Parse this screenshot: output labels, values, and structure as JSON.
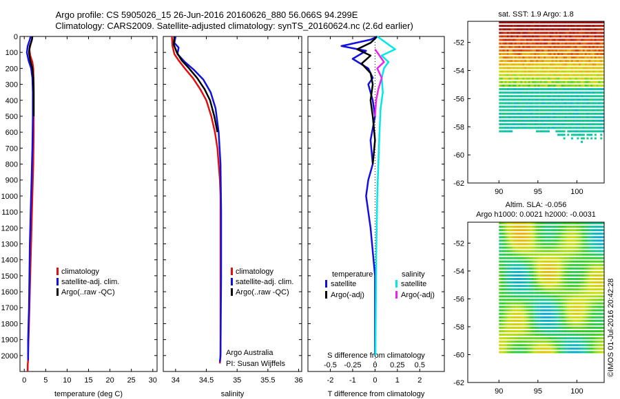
{
  "header": {
    "title_line1": "Argo profile: CS 5905026_15 26-Jun-2016 20160626_880 56.066S 94.299E",
    "title_line2": "Climatology: CARS2009. Satellite-adjusted climatology: synTS_20160624.nc (2.6d earlier)"
  },
  "colors": {
    "climatology": "#e01010",
    "satellite": "#1010e0",
    "argo": "#000000",
    "sal_satellite": "#00e8e8",
    "sal_argo": "#f020f0"
  },
  "footer": {
    "institution": "Argo Australia",
    "pi": "PI: Susan Wijffels",
    "timestamp": "©IMOS 01-Jul-2016 20:42:28"
  },
  "chart_data": [
    {
      "type": "line",
      "xlabel": "temperature (deg C)",
      "ylim": [
        0,
        2100
      ],
      "xlim": [
        -1,
        31
      ],
      "xticks": [
        0,
        5,
        10,
        15,
        20,
        25,
        30
      ],
      "yticks": [
        0,
        100,
        200,
        300,
        400,
        500,
        600,
        700,
        800,
        900,
        1000,
        1100,
        1200,
        1300,
        1400,
        1500,
        1600,
        1700,
        1800,
        1900,
        2000
      ],
      "legend": [
        "climatology",
        "satellite-adj. clim.",
        "Argo(..raw -QC)"
      ],
      "series": [
        {
          "name": "climatology",
          "color": "#e01010",
          "x": [
            1.9,
            1.8,
            1.5,
            1.2,
            1.4,
            1.9,
            2.1,
            2.2,
            2.2,
            2.2,
            2.1,
            1.9,
            1.7,
            1.5,
            1.3,
            1.2,
            1.1,
            1.0,
            0.9,
            0.9,
            0.8,
            0.8
          ],
          "y": [
            0,
            20,
            50,
            80,
            120,
            160,
            200,
            300,
            400,
            600,
            800,
            1000,
            1200,
            1400,
            1600,
            1700,
            1800,
            1900,
            2000,
            2030,
            2060,
            2100
          ]
        },
        {
          "name": "satellite-adj. clim.",
          "color": "#1010e0",
          "x": [
            1.5,
            1.3,
            0.8,
            0.6,
            1.0,
            1.6,
            1.9,
            2.0,
            2.0,
            1.9,
            1.7,
            1.5,
            1.3,
            1.2,
            1.1,
            1.0,
            0.9,
            0.9,
            0.9
          ],
          "y": [
            0,
            20,
            60,
            100,
            150,
            200,
            260,
            350,
            500,
            700,
            900,
            1100,
            1300,
            1500,
            1700,
            1800,
            1900,
            2000,
            2030
          ]
        },
        {
          "name": "Argo(..raw -QC)",
          "color": "#000000",
          "x": [
            1.9,
            1.8,
            1.3,
            1.1,
            1.4,
            1.9,
            2.1,
            2.2,
            2.2
          ],
          "y": [
            0,
            20,
            60,
            100,
            150,
            200,
            260,
            350,
            500
          ]
        }
      ]
    },
    {
      "type": "line",
      "xlabel": "salinity",
      "ylim": [
        0,
        2100
      ],
      "xlim": [
        33.8,
        36.05
      ],
      "xticks": [
        34,
        34.5,
        35,
        35.5,
        36
      ],
      "legend": [
        "climatology",
        "satellite-adj. clim.",
        "Argo(..raw -QC)"
      ],
      "series": [
        {
          "name": "climatology",
          "color": "#e01010",
          "x": [
            33.94,
            33.95,
            33.98,
            34.05,
            34.15,
            34.28,
            34.4,
            34.5,
            34.58,
            34.64,
            34.68,
            34.7,
            34.72,
            34.73,
            34.73,
            34.73,
            34.72
          ],
          "y": [
            0,
            60,
            110,
            150,
            200,
            260,
            330,
            400,
            500,
            600,
            700,
            800,
            900,
            1000,
            1500,
            2000,
            2050
          ]
        },
        {
          "name": "satellite-adj. clim.",
          "color": "#1010e0",
          "x": [
            34.0,
            33.98,
            34.05,
            34.03,
            34.15,
            34.3,
            34.45,
            34.57,
            34.65,
            34.7,
            34.73,
            34.74,
            34.74,
            34.73,
            34.72
          ],
          "y": [
            0,
            40,
            70,
            110,
            160,
            210,
            270,
            350,
            450,
            600,
            800,
            1100,
            1500,
            2000,
            2040
          ]
        },
        {
          "name": "Argo(..raw -QC)",
          "color": "#000000",
          "x": [
            33.98,
            33.97,
            34.02,
            34.1,
            34.22,
            34.35,
            34.47,
            34.56,
            34.63,
            34.68
          ],
          "y": [
            0,
            50,
            100,
            150,
            200,
            260,
            330,
            400,
            500,
            600
          ]
        }
      ]
    },
    {
      "type": "line",
      "xlabel": "T difference from climatology",
      "xlabel_top": "S difference from climatology",
      "ylim": [
        0,
        2100
      ],
      "xlim": [
        -3,
        3.1
      ],
      "xticks": [
        -2,
        -1,
        0,
        1,
        2
      ],
      "xticks_top": [
        "-0.5",
        "-0.25",
        "0",
        "0.25",
        "0.5"
      ],
      "legend_headers": [
        "temperature",
        "salinity"
      ],
      "legend": [
        "satellite",
        "Argo(-adj)",
        "satellite",
        "Argo(-adj)"
      ],
      "series": [
        {
          "name": "satellite",
          "color": "#1010e0",
          "x": [
            0.1,
            -0.2,
            -1.5,
            -0.4,
            -1.0,
            -0.3,
            -0.1,
            -0.3,
            -0.1,
            0.0,
            -0.2,
            -0.1,
            -0.3,
            -0.4,
            -0.2,
            0.0,
            0.0
          ],
          "y": [
            0,
            20,
            60,
            90,
            140,
            200,
            260,
            300,
            400,
            500,
            650,
            800,
            900,
            1000,
            1200,
            1500,
            2000
          ]
        },
        {
          "name": "Argo(-adj)",
          "color": "#000000",
          "x": [
            0.1,
            -0.2,
            -0.8,
            -0.2,
            -0.6,
            -0.2,
            -0.1,
            -0.2,
            -0.1,
            0.0,
            -0.1
          ],
          "y": [
            0,
            40,
            80,
            120,
            170,
            230,
            300,
            400,
            500,
            650,
            800
          ]
        },
        {
          "name": "satellite",
          "color": "#00e8e8",
          "x": [
            0.1,
            0.5,
            0.9,
            0.3,
            0.6,
            0.4,
            0.3,
            0.35,
            0.25,
            0.2,
            0.15,
            0.1,
            0.05,
            0.02
          ],
          "y": [
            0,
            40,
            80,
            120,
            160,
            200,
            260,
            350,
            450,
            600,
            800,
            1000,
            1400,
            2000
          ]
        },
        {
          "name": "Argo(-adj)",
          "color": "#f020f0",
          "x": [
            0.0,
            0.2,
            0.4,
            0.1,
            0.3,
            0.15,
            0.05,
            0.0
          ],
          "y": [
            80,
            120,
            160,
            200,
            260,
            330,
            400,
            500
          ]
        }
      ]
    },
    {
      "type": "heatmap",
      "title": "sat. SST: 1.9 Argo: 1.8",
      "xlim": [
        86,
        103.5
      ],
      "ylim": [
        -62,
        -50.5
      ],
      "xticks": [
        90,
        95,
        100
      ],
      "yticks": [
        -52,
        -54,
        -56,
        -58,
        -60,
        -62
      ]
    },
    {
      "type": "heatmap",
      "title": "Altim. SLA: -0.056",
      "subtitle": "Argo h1000: 0.0021 h2000: -0.0031",
      "xlim": [
        86,
        103.5
      ],
      "ylim": [
        -62,
        -50.5
      ],
      "xticks": [
        90,
        95,
        100
      ],
      "yticks": [
        -52,
        -54,
        -56,
        -58,
        -60,
        -62
      ]
    }
  ]
}
